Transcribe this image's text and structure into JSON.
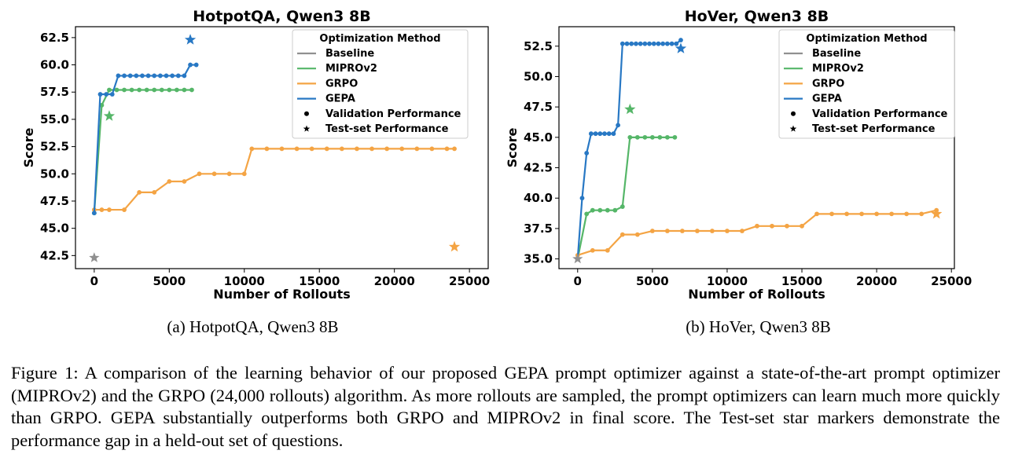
{
  "figure": {
    "subcaptions": [
      "(a) HotpotQA, Qwen3 8B",
      "(b) HoVer, Qwen3 8B"
    ],
    "caption": "Figure 1: A comparison of the learning behavior of our proposed GEPA prompt optimizer against a state-of-the-art prompt optimizer (MIPROv2) and the GRPO (24,000 rollouts) algorithm. As more rollouts are sampled, the prompt optimizers can learn much more quickly than GRPO. GEPA substantially outperforms both GRPO and MIPROv2 in final score. The Test-set star markers demonstrate the performance gap in a held-out set of questions."
  },
  "chart_data": [
    {
      "type": "line",
      "title": "HotpotQA, Qwen3 8B",
      "xlabel": "Number of Rollouts",
      "ylabel": "Score",
      "xlim": [
        -1250,
        26250
      ],
      "ylim": [
        41.3,
        63.5
      ],
      "xticks": [
        0,
        5000,
        10000,
        15000,
        20000,
        25000
      ],
      "yticks": [
        42.5,
        45.0,
        47.5,
        50.0,
        52.5,
        55.0,
        57.5,
        60.0,
        62.5
      ],
      "xtick_labels": [
        "0",
        "5000",
        "10000",
        "15000",
        "20000",
        "25000"
      ],
      "ytick_labels": [
        "42.5",
        "45.0",
        "47.5",
        "50.0",
        "52.5",
        "55.0",
        "57.5",
        "60.0",
        "62.5"
      ],
      "legend": {
        "title": "Optimization Method",
        "position": "top-right",
        "entries": [
          "Baseline",
          "MIPROv2",
          "GRPO",
          "GEPA",
          "Validation Performance",
          "Test-set Performance"
        ]
      },
      "series": [
        {
          "name": "MIPROv2",
          "color": "#55b668",
          "x": [
            0,
            500,
            1000,
            1500,
            2000,
            2500,
            3000,
            3500,
            4000,
            4500,
            5000,
            5500,
            6000,
            6500
          ],
          "y": [
            46.4,
            56.3,
            57.7,
            57.7,
            57.7,
            57.7,
            57.7,
            57.7,
            57.7,
            57.7,
            57.7,
            57.7,
            57.7,
            57.7
          ],
          "test": {
            "x": 1000,
            "y": 55.3
          }
        },
        {
          "name": "GRPO",
          "color": "#f4a444",
          "x": [
            0,
            500,
            1000,
            2000,
            3000,
            4000,
            5000,
            6000,
            7000,
            8000,
            9000,
            10000,
            10500,
            11500,
            12500,
            13500,
            14500,
            15500,
            16500,
            17500,
            18500,
            19500,
            20500,
            21500,
            22500,
            23500,
            24000
          ],
          "y": [
            46.7,
            46.7,
            46.7,
            46.7,
            48.3,
            48.3,
            49.3,
            49.3,
            50.0,
            50.0,
            50.0,
            50.0,
            52.3,
            52.3,
            52.3,
            52.3,
            52.3,
            52.3,
            52.3,
            52.3,
            52.3,
            52.3,
            52.3,
            52.3,
            52.3,
            52.3,
            52.3
          ],
          "test": {
            "x": 24000,
            "y": 43.3
          }
        },
        {
          "name": "GEPA",
          "color": "#2878c4",
          "x": [
            0,
            400,
            800,
            1200,
            1600,
            2000,
            2400,
            2800,
            3200,
            3600,
            4000,
            4400,
            4800,
            5200,
            5600,
            6000,
            6400,
            6800
          ],
          "y": [
            46.4,
            57.3,
            57.3,
            57.3,
            59.0,
            59.0,
            59.0,
            59.0,
            59.0,
            59.0,
            59.0,
            59.0,
            59.0,
            59.0,
            59.0,
            59.0,
            60.0,
            60.0
          ],
          "test": {
            "x": 6400,
            "y": 62.3
          }
        }
      ],
      "baseline": {
        "name": "Baseline",
        "color": "#909090",
        "test": {
          "x": 0,
          "y": 42.3
        }
      }
    },
    {
      "type": "line",
      "title": "HoVer, Qwen3 8B",
      "xlabel": "Number of Rollouts",
      "ylabel": "Score",
      "xlim": [
        -1250,
        25200
      ],
      "ylim": [
        34.2,
        54.1
      ],
      "xticks": [
        0,
        5000,
        10000,
        15000,
        20000,
        25000
      ],
      "yticks": [
        35.0,
        37.5,
        40.0,
        42.5,
        45.0,
        47.5,
        50.0,
        52.5
      ],
      "xtick_labels": [
        "0",
        "5000",
        "10000",
        "15000",
        "20000",
        "25000"
      ],
      "ytick_labels": [
        "35.0",
        "37.5",
        "40.0",
        "42.5",
        "45.0",
        "47.5",
        "50.0",
        "52.5"
      ],
      "legend": {
        "title": "Optimization Method",
        "position": "top-right",
        "entries": [
          "Baseline",
          "MIPROv2",
          "GRPO",
          "GEPA",
          "Validation Performance",
          "Test-set Performance"
        ]
      },
      "series": [
        {
          "name": "MIPROv2",
          "color": "#55b668",
          "x": [
            0,
            600,
            1000,
            1500,
            2000,
            2500,
            3000,
            3500,
            4000,
            4500,
            5000,
            5500,
            6000,
            6500
          ],
          "y": [
            35.0,
            38.7,
            39.0,
            39.0,
            39.0,
            39.0,
            39.3,
            45.0,
            45.0,
            45.0,
            45.0,
            45.0,
            45.0,
            45.0
          ],
          "test": {
            "x": 3500,
            "y": 47.3
          }
        },
        {
          "name": "GRPO",
          "color": "#f4a444",
          "x": [
            0,
            1000,
            2000,
            3000,
            4000,
            5000,
            6000,
            7000,
            8000,
            9000,
            10000,
            11000,
            12000,
            13000,
            14000,
            15000,
            16000,
            17000,
            18000,
            19000,
            20000,
            21000,
            22000,
            23000,
            24000
          ],
          "y": [
            35.3,
            35.7,
            35.7,
            37.0,
            37.0,
            37.3,
            37.3,
            37.3,
            37.3,
            37.3,
            37.3,
            37.3,
            37.7,
            37.7,
            37.7,
            37.7,
            38.7,
            38.7,
            38.7,
            38.7,
            38.7,
            38.7,
            38.7,
            38.7,
            39.0
          ],
          "test": {
            "x": 24000,
            "y": 38.7
          }
        },
        {
          "name": "GEPA",
          "color": "#2878c4",
          "x": [
            0,
            300,
            600,
            900,
            1200,
            1500,
            1800,
            2100,
            2400,
            2700,
            3000,
            3300,
            3600,
            3900,
            4200,
            4500,
            4800,
            5100,
            5400,
            5700,
            6000,
            6300,
            6600,
            6900
          ],
          "y": [
            35.0,
            40.0,
            43.7,
            45.3,
            45.3,
            45.3,
            45.3,
            45.3,
            45.3,
            46.0,
            52.7,
            52.7,
            52.7,
            52.7,
            52.7,
            52.7,
            52.7,
            52.7,
            52.7,
            52.7,
            52.7,
            52.7,
            52.7,
            53.0
          ],
          "test": {
            "x": 6900,
            "y": 52.3
          }
        }
      ],
      "baseline": {
        "name": "Baseline",
        "color": "#909090",
        "test": {
          "x": 0,
          "y": 35.0
        }
      }
    }
  ]
}
